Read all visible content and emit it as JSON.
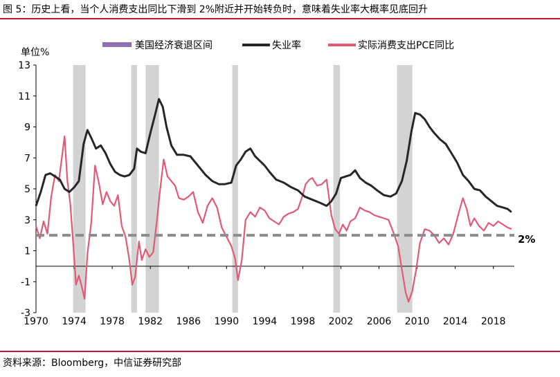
{
  "header": {
    "title": "图 5：历史上看，当个人消费支出同比下滑到 2%附近并开始转负时，意味着失业率大概率见底回升"
  },
  "footer": {
    "source": "资料来源：Bloomberg，中信证券研究部"
  },
  "chart_data": {
    "type": "line",
    "title": "",
    "ylabel": "单位%",
    "xlabel": "",
    "ylim": [
      -3,
      13
    ],
    "yticks": [
      -3,
      -1,
      1,
      3,
      5,
      7,
      9,
      11,
      13
    ],
    "xlim": [
      1970,
      2020.2
    ],
    "xticks": [
      1970,
      1974,
      1978,
      1982,
      1986,
      1990,
      1994,
      1998,
      2002,
      2006,
      2010,
      2014,
      2018
    ],
    "legend": [
      "美国经济衰退区间",
      "失业率",
      "实际消费支出PCE同比"
    ],
    "recessions": [
      [
        1973.9,
        1975.2
      ],
      [
        1980.0,
        1980.6
      ],
      [
        1981.5,
        1982.9
      ],
      [
        1990.6,
        1991.2
      ],
      [
        2001.2,
        2001.9
      ],
      [
        2007.9,
        2009.5
      ]
    ],
    "reference_line": {
      "value": 2,
      "label": "2%"
    },
    "colors": {
      "recession": "#d3d3d3",
      "unemployment": "#262626",
      "pce": "#e05a78",
      "reference": "#8c8c8c",
      "legend_recession": "#8e6fb0"
    },
    "series": [
      {
        "name": "失业率",
        "x": [
          1970.0,
          1970.5,
          1971.0,
          1971.5,
          1972.0,
          1972.5,
          1973.0,
          1973.5,
          1974.0,
          1974.5,
          1975.0,
          1975.4,
          1975.8,
          1976.3,
          1976.8,
          1977.3,
          1977.8,
          1978.3,
          1978.8,
          1979.3,
          1979.8,
          1980.3,
          1980.6,
          1981.0,
          1981.5,
          1982.0,
          1982.5,
          1982.9,
          1983.3,
          1983.7,
          1984.2,
          1984.8,
          1985.5,
          1986.2,
          1987.0,
          1987.8,
          1988.5,
          1989.2,
          1989.8,
          1990.5,
          1991.0,
          1991.5,
          1992.0,
          1992.5,
          1993.0,
          1993.5,
          1994.0,
          1994.5,
          1995.2,
          1996.0,
          1996.8,
          1997.5,
          1998.2,
          1999.0,
          1999.8,
          2000.5,
          2001.0,
          2001.5,
          2002.0,
          2002.5,
          2003.0,
          2003.5,
          2004.0,
          2004.6,
          2005.2,
          2005.8,
          2006.5,
          2007.2,
          2007.8,
          2008.4,
          2008.9,
          2009.4,
          2009.8,
          2010.3,
          2010.8,
          2011.3,
          2011.8,
          2012.4,
          2013.0,
          2013.6,
          2014.2,
          2014.8,
          2015.4,
          2016.0,
          2016.6,
          2017.2,
          2017.8,
          2018.4,
          2019.0,
          2019.5,
          2019.9
        ],
        "values": [
          3.9,
          4.8,
          5.9,
          6.0,
          5.8,
          5.6,
          5.0,
          4.8,
          5.1,
          5.5,
          7.9,
          8.8,
          8.3,
          7.6,
          7.8,
          7.3,
          6.6,
          6.1,
          5.9,
          5.8,
          5.9,
          6.3,
          7.6,
          7.4,
          7.3,
          8.6,
          9.8,
          10.8,
          10.3,
          9.0,
          7.8,
          7.2,
          7.2,
          7.1,
          6.5,
          5.9,
          5.5,
          5.3,
          5.3,
          5.4,
          6.5,
          6.9,
          7.4,
          7.6,
          7.1,
          6.8,
          6.5,
          6.1,
          5.6,
          5.4,
          5.1,
          4.9,
          4.5,
          4.3,
          4.1,
          3.9,
          4.2,
          4.7,
          5.7,
          5.8,
          5.9,
          6.2,
          5.7,
          5.4,
          5.2,
          4.9,
          4.6,
          4.5,
          4.7,
          5.5,
          6.8,
          8.7,
          9.9,
          9.8,
          9.5,
          9.0,
          8.6,
          8.2,
          7.9,
          7.3,
          6.7,
          5.9,
          5.5,
          5.0,
          4.9,
          4.5,
          4.2,
          3.9,
          3.8,
          3.7,
          3.5
        ]
      },
      {
        "name": "实际消费支出PCE同比",
        "x": [
          1970.0,
          1970.4,
          1970.8,
          1971.2,
          1971.6,
          1972.0,
          1972.4,
          1972.8,
          1973.0,
          1973.3,
          1973.6,
          1973.9,
          1974.2,
          1974.5,
          1974.8,
          1975.1,
          1975.4,
          1975.8,
          1976.2,
          1976.6,
          1977.0,
          1977.4,
          1977.8,
          1978.2,
          1978.6,
          1979.0,
          1979.4,
          1979.8,
          1980.1,
          1980.4,
          1980.8,
          1981.1,
          1981.5,
          1981.9,
          1982.3,
          1982.7,
          1983.0,
          1983.4,
          1983.8,
          1984.2,
          1984.6,
          1985.0,
          1985.5,
          1986.0,
          1986.5,
          1987.0,
          1987.5,
          1988.0,
          1988.5,
          1989.0,
          1989.5,
          1990.0,
          1990.5,
          1990.9,
          1991.2,
          1991.6,
          1992.0,
          1992.5,
          1993.0,
          1993.5,
          1994.0,
          1994.5,
          1995.0,
          1995.5,
          1996.0,
          1996.5,
          1997.0,
          1997.5,
          1998.0,
          1998.3,
          1998.7,
          1999.0,
          1999.5,
          2000.0,
          2000.5,
          2001.0,
          2001.4,
          2001.8,
          2002.2,
          2002.6,
          2003.0,
          2003.5,
          2004.0,
          2004.5,
          2005.0,
          2005.5,
          2006.0,
          2006.5,
          2007.0,
          2007.5,
          2008.0,
          2008.4,
          2008.8,
          2009.1,
          2009.5,
          2009.9,
          2010.3,
          2010.8,
          2011.3,
          2011.8,
          2012.3,
          2012.8,
          2013.3,
          2013.8,
          2014.3,
          2014.8,
          2015.2,
          2015.6,
          2016.0,
          2016.5,
          2017.0,
          2017.5,
          2018.0,
          2018.5,
          2019.0,
          2019.5,
          2019.9
        ],
        "values": [
          2.6,
          1.8,
          2.9,
          2.1,
          4.5,
          5.9,
          5.5,
          7.4,
          8.4,
          5.5,
          4.0,
          1.5,
          -1.2,
          -0.6,
          -1.3,
          -2.1,
          0.8,
          2.8,
          6.5,
          5.4,
          4.0,
          4.8,
          4.2,
          3.9,
          4.6,
          2.6,
          1.9,
          0.4,
          -1.2,
          -0.7,
          1.6,
          0.4,
          1.1,
          0.6,
          0.9,
          3.0,
          4.8,
          6.9,
          5.8,
          5.5,
          5.2,
          4.4,
          4.3,
          4.5,
          4.8,
          3.5,
          2.8,
          3.9,
          4.4,
          3.8,
          2.5,
          1.9,
          1.3,
          0.5,
          -0.9,
          0.4,
          3.0,
          3.5,
          3.2,
          3.8,
          3.6,
          3.1,
          2.9,
          2.7,
          3.2,
          3.4,
          3.5,
          3.7,
          4.6,
          5.3,
          5.6,
          5.7,
          5.2,
          5.3,
          5.6,
          3.3,
          2.4,
          2.1,
          2.7,
          2.3,
          2.9,
          3.1,
          3.8,
          3.6,
          3.5,
          3.3,
          3.2,
          3.1,
          3.0,
          2.2,
          1.3,
          -0.2,
          -1.7,
          -2.3,
          -1.6,
          -0.2,
          1.5,
          2.4,
          2.3,
          2.0,
          1.5,
          1.8,
          1.4,
          2.1,
          3.3,
          4.4,
          3.7,
          2.6,
          3.1,
          2.6,
          2.3,
          2.8,
          2.6,
          2.9,
          2.7,
          2.5,
          2.4
        ]
      }
    ]
  }
}
